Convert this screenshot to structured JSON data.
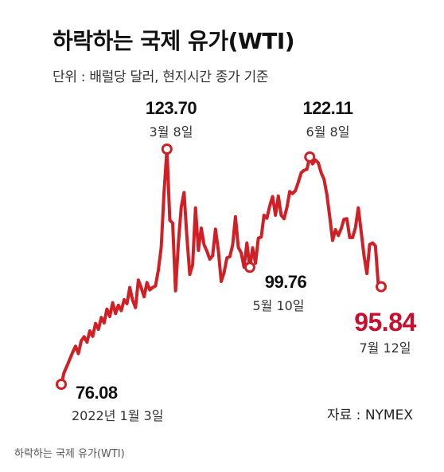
{
  "title": "하락하는 국제 유가(WTI)",
  "subtitle": "단위 : 배럴당 달러, 현지시간 종가 기준",
  "source": "자료 : NYMEX",
  "caption": "하락하는 국제 유가(WTI)",
  "colors": {
    "line": "#d11f26",
    "highlight": "#c8102e",
    "text": "#111111"
  },
  "chart_data": {
    "type": "line",
    "ylabel": "배럴당 달러",
    "series": [
      {
        "values": [
          76.08,
          78.5,
          79.8,
          81.2,
          82.6,
          83.8,
          82.3,
          84.9,
          85.7,
          84.6,
          86.9,
          85.8,
          88.4,
          87.2,
          89.6,
          88.5,
          91.3,
          89.8,
          92.6,
          90.4,
          92.1,
          91.0,
          93.2,
          92.4,
          95.7,
          93.1,
          91.6,
          97.2,
          95.6,
          93.8,
          96.7,
          95.2,
          95.7,
          96.0,
          99.2,
          103.8,
          115.0,
          123.7,
          109.3,
          108.7,
          95.0,
          104.7,
          112.0,
          114.9,
          105.9,
          98.3,
          100.3,
          111.8,
          103.2,
          107.7,
          104.3,
          103.0,
          101.4,
          102.1,
          107.5,
          103.2,
          96.9,
          98.7,
          101.7,
          101.9,
          104.3,
          110.0,
          103.8,
          102.7,
          99.8,
          104.7,
          99.76,
          103.7,
          100.6,
          105.7,
          105.9,
          110.3,
          109.7,
          112.2,
          114.1,
          110.3,
          114.2,
          110.3,
          109.6,
          111.9,
          115.1,
          114.7,
          115.3,
          117.0,
          118.9,
          119.4,
          119.6,
          122.11,
          120.7,
          121.5,
          120.9,
          118.9,
          117.6,
          114.5,
          110.0,
          105.2,
          107.4,
          106.2,
          107.6,
          109.5,
          109.6,
          105.8,
          105.8,
          107.8,
          111.8,
          107.0,
          102.1,
          98.5,
          104.4,
          104.7,
          104.1,
          96.3,
          95.84
        ]
      }
    ],
    "annotations": [
      {
        "value": "76.08",
        "date": "2022년 1월 3일",
        "point_index": 0
      },
      {
        "value": "123.70",
        "date": "3월 8일",
        "point_index": 37
      },
      {
        "value": "99.76",
        "date": "5월 10일",
        "point_index": 66
      },
      {
        "value": "122.11",
        "date": "6월 8일",
        "point_index": 87
      },
      {
        "value": "95.84",
        "date": "7월 12일",
        "point_index": 112,
        "highlight": true
      }
    ]
  }
}
